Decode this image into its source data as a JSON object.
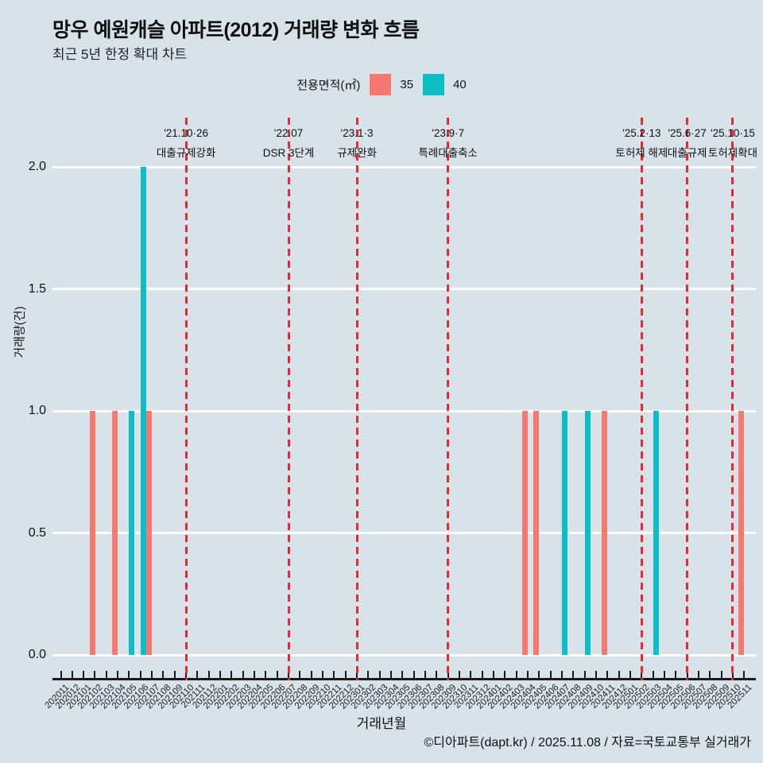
{
  "title": "망우 예원캐슬 아파트(2012) 거래량 변화 흐름",
  "subtitle": "최근 5년 한정 확대 차트",
  "legend": {
    "label": "전용면적(㎡)",
    "items": [
      {
        "name": "35",
        "color": "#f6786f"
      },
      {
        "name": "40",
        "color": "#0cbec5"
      }
    ]
  },
  "footer": "©디아파트(dapt.kr) / 2025.11.08 / 자료=국토교통부 실거래가",
  "chart_data": {
    "type": "bar",
    "title": "망우 예원캐슬 아파트(2012) 거래량 변화 흐름",
    "subtitle": "최근 5년 한정 확대 차트",
    "xlabel": "거래년월",
    "ylabel": "거래량(건)",
    "ylim": [
      0,
      2
    ],
    "yticks": [
      0.0,
      0.5,
      1.0,
      1.5,
      2.0
    ],
    "grid": true,
    "legend_position": "top",
    "legend_title": "전용면적(㎡)",
    "categories": [
      "202011",
      "202012",
      "202101",
      "202102",
      "202103",
      "202104",
      "202105",
      "202106",
      "202107",
      "202108",
      "202109",
      "202110",
      "202111",
      "202112",
      "202201",
      "202202",
      "202203",
      "202204",
      "202205",
      "202206",
      "202207",
      "202208",
      "202209",
      "202210",
      "202211",
      "202212",
      "202301",
      "202302",
      "202303",
      "202304",
      "202305",
      "202306",
      "202307",
      "202308",
      "202309",
      "202310",
      "202311",
      "202312",
      "202401",
      "202402",
      "202403",
      "202404",
      "202405",
      "202406",
      "202407",
      "202408",
      "202409",
      "202410",
      "202411",
      "202412",
      "202501",
      "202502",
      "202503",
      "202504",
      "202505",
      "202506",
      "202507",
      "202508",
      "202509",
      "202510",
      "202511"
    ],
    "series": [
      {
        "name": "35",
        "color": "#f6786f",
        "points": {
          "202102": 1,
          "202104": 1,
          "202107": 1,
          "202404": 1,
          "202405": 1,
          "202411": 1,
          "202511": 1
        }
      },
      {
        "name": "40",
        "color": "#0cbec5",
        "points": {
          "202105": 1,
          "202106": 2,
          "202407": 1,
          "202409": 1,
          "202503": 1
        }
      }
    ],
    "annotations": [
      {
        "x": "202110",
        "date": "'21.10·26",
        "label": "대출규제강화"
      },
      {
        "x": "202207",
        "date": "'22.07",
        "label": "DSR 3단계"
      },
      {
        "x": "202301",
        "date": "'23.1·3",
        "label": "규제완화"
      },
      {
        "x": "202309",
        "date": "'23.9·7",
        "label": "특례대출축소"
      },
      {
        "x": "202502",
        "date": "'25.2·13",
        "label": "토허제 해제"
      },
      {
        "x": "202506",
        "date": "'25.6·27",
        "label": "대출규제"
      },
      {
        "x": "202510",
        "date": "'25.10·15",
        "label": "토허제확대"
      }
    ],
    "annotation_line_color": "#e92a2d",
    "background_color": "#d8e2e9",
    "gridline_color": "#ffffff"
  }
}
